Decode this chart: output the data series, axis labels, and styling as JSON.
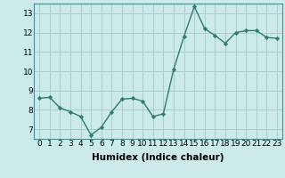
{
  "x": [
    0,
    1,
    2,
    3,
    4,
    5,
    6,
    7,
    8,
    9,
    10,
    11,
    12,
    13,
    14,
    15,
    16,
    17,
    18,
    19,
    20,
    21,
    22,
    23
  ],
  "y": [
    8.6,
    8.65,
    8.1,
    7.9,
    7.65,
    6.7,
    7.1,
    7.9,
    8.55,
    8.6,
    8.45,
    7.65,
    7.8,
    10.1,
    11.8,
    13.35,
    12.2,
    11.85,
    11.45,
    12.0,
    12.1,
    12.1,
    11.75,
    11.7
  ],
  "line_color": "#2e7d6e",
  "marker": "D",
  "marker_size": 2.2,
  "line_width": 1.0,
  "xlabel": "Humidex (Indice chaleur)",
  "ylim": [
    6.5,
    13.5
  ],
  "xlim": [
    -0.5,
    23.5
  ],
  "yticks": [
    7,
    8,
    9,
    10,
    11,
    12,
    13
  ],
  "xtick_labels": [
    "0",
    "1",
    "2",
    "3",
    "4",
    "5",
    "6",
    "7",
    "8",
    "9",
    "10",
    "11",
    "12",
    "13",
    "14",
    "15",
    "16",
    "17",
    "18",
    "19",
    "20",
    "21",
    "22",
    "23"
  ],
  "bg_color": "#cceaea",
  "grid_color": "#aacfcf",
  "tick_label_fontsize": 6.5,
  "xlabel_fontsize": 7.5,
  "xlabel_fontweight": "bold"
}
